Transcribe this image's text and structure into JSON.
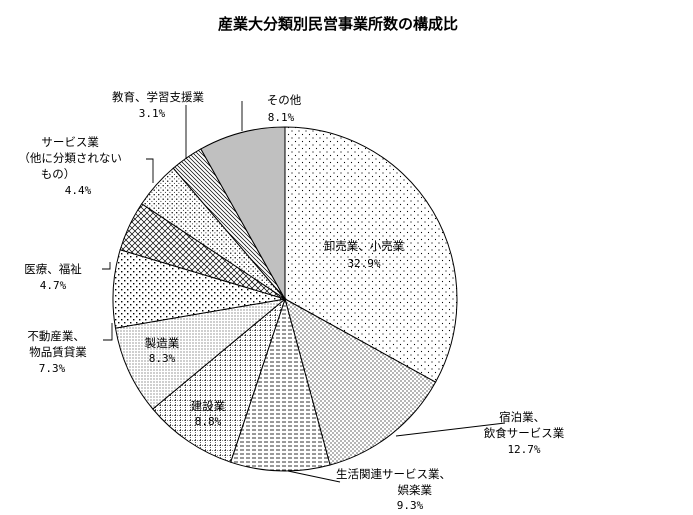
{
  "chart_data": {
    "type": "pie",
    "title": "産業大分類別民営事業所数の構成比",
    "slices": [
      {
        "label": "卸売業、小売業",
        "value": 32.9,
        "value_label": "32.9%",
        "pattern": "dots-sparse",
        "color": "#ffffff"
      },
      {
        "label": "宿泊業、飲食サービス業",
        "value": 12.7,
        "value_label": "12.7%",
        "pattern": "dots-dense",
        "color": "#ffffff"
      },
      {
        "label": "生活関連サービス業、娯楽業",
        "value": 9.3,
        "value_label": "9.3%",
        "pattern": "dashes",
        "color": "#ffffff"
      },
      {
        "label": "建設業",
        "value": 8.8,
        "value_label": "8.8%",
        "pattern": "grid",
        "color": "#ffffff"
      },
      {
        "label": "製造業",
        "value": 8.3,
        "value_label": "8.3%",
        "pattern": "dots-fine",
        "color": "#ffffff"
      },
      {
        "label": "不動産業、物品賃貸業",
        "value": 7.3,
        "value_label": "7.3%",
        "pattern": "dots-squares",
        "color": "#ffffff"
      },
      {
        "label": "医療、福祉",
        "value": 4.7,
        "value_label": "4.7%",
        "pattern": "crosshatch",
        "color": "#ffffff"
      },
      {
        "label": "サービス業（他に分類されないもの）",
        "value": 4.4,
        "value_label": "4.4%",
        "pattern": "dots-medium",
        "color": "#ffffff"
      },
      {
        "label": "教育、学習支援業",
        "value": 3.1,
        "value_label": "3.1%",
        "pattern": "diagonal",
        "color": "#ffffff"
      },
      {
        "label": "その他",
        "value": 8.1,
        "value_label": "8.1%",
        "pattern": "solid",
        "color": "#c0c0c0"
      }
    ],
    "start_angle": "12 o'clock",
    "direction": "clockwise",
    "legend": "none (labels placed around the pie)"
  }
}
